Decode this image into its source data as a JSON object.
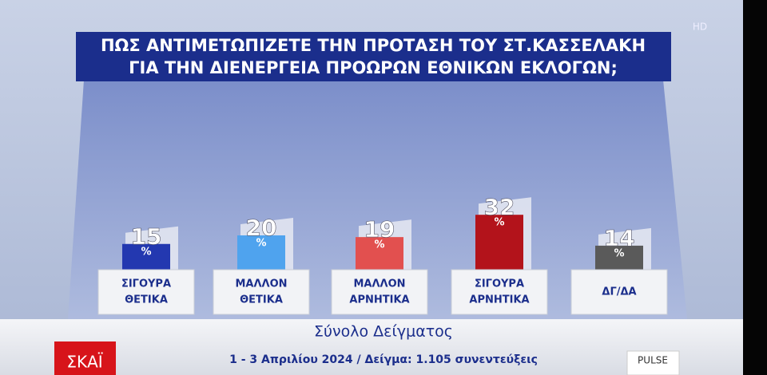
{
  "chart_data": {
    "type": "bar",
    "title": [
      "ΠΩΣ ΑΝΤΙΜΕΤΩΠΙΖΕΤΕ ΤΗΝ ΠΡΟΤΑΣΗ ΤΟΥ ΣΤ.ΚΑΣΣΕΛΑΚΗ",
      "ΓΙΑ ΤΗΝ ΔΙΕΝΕΡΓΕΙΑ ΠΡΟΩΡΩΝ ΕΘΝΙΚΩΝ ΕΚΛΟΓΩΝ;"
    ],
    "categories": [
      [
        "ΣΙΓΟΥΡΑ",
        "ΘΕΤΙΚΑ"
      ],
      [
        "ΜΑΛΛΟΝ",
        "ΘΕΤΙΚΑ"
      ],
      [
        "ΜΑΛΛΟΝ",
        "ΑΡΝΗΤΙΚΑ"
      ],
      [
        "ΣΙΓΟΥΡΑ",
        "ΑΡΝΗΤΙΚΑ"
      ],
      [
        "ΔΓ/ΔΑ"
      ]
    ],
    "values": [
      15,
      20,
      19,
      32,
      14
    ],
    "unit": "%",
    "colors": [
      "#2338b0",
      "#4fa3ee",
      "#e2504f",
      "#b3131b",
      "#5a5a5a"
    ],
    "subtitle": "Σύνολο Δείγματος",
    "footer": "1 - 3 Απριλίου 2024 / Δείγμα: 1.105 συνεντεύξεις"
  },
  "branding": {
    "channel": "ΣΚΑΪ",
    "pollster": "PULSE",
    "quality": "HD"
  }
}
